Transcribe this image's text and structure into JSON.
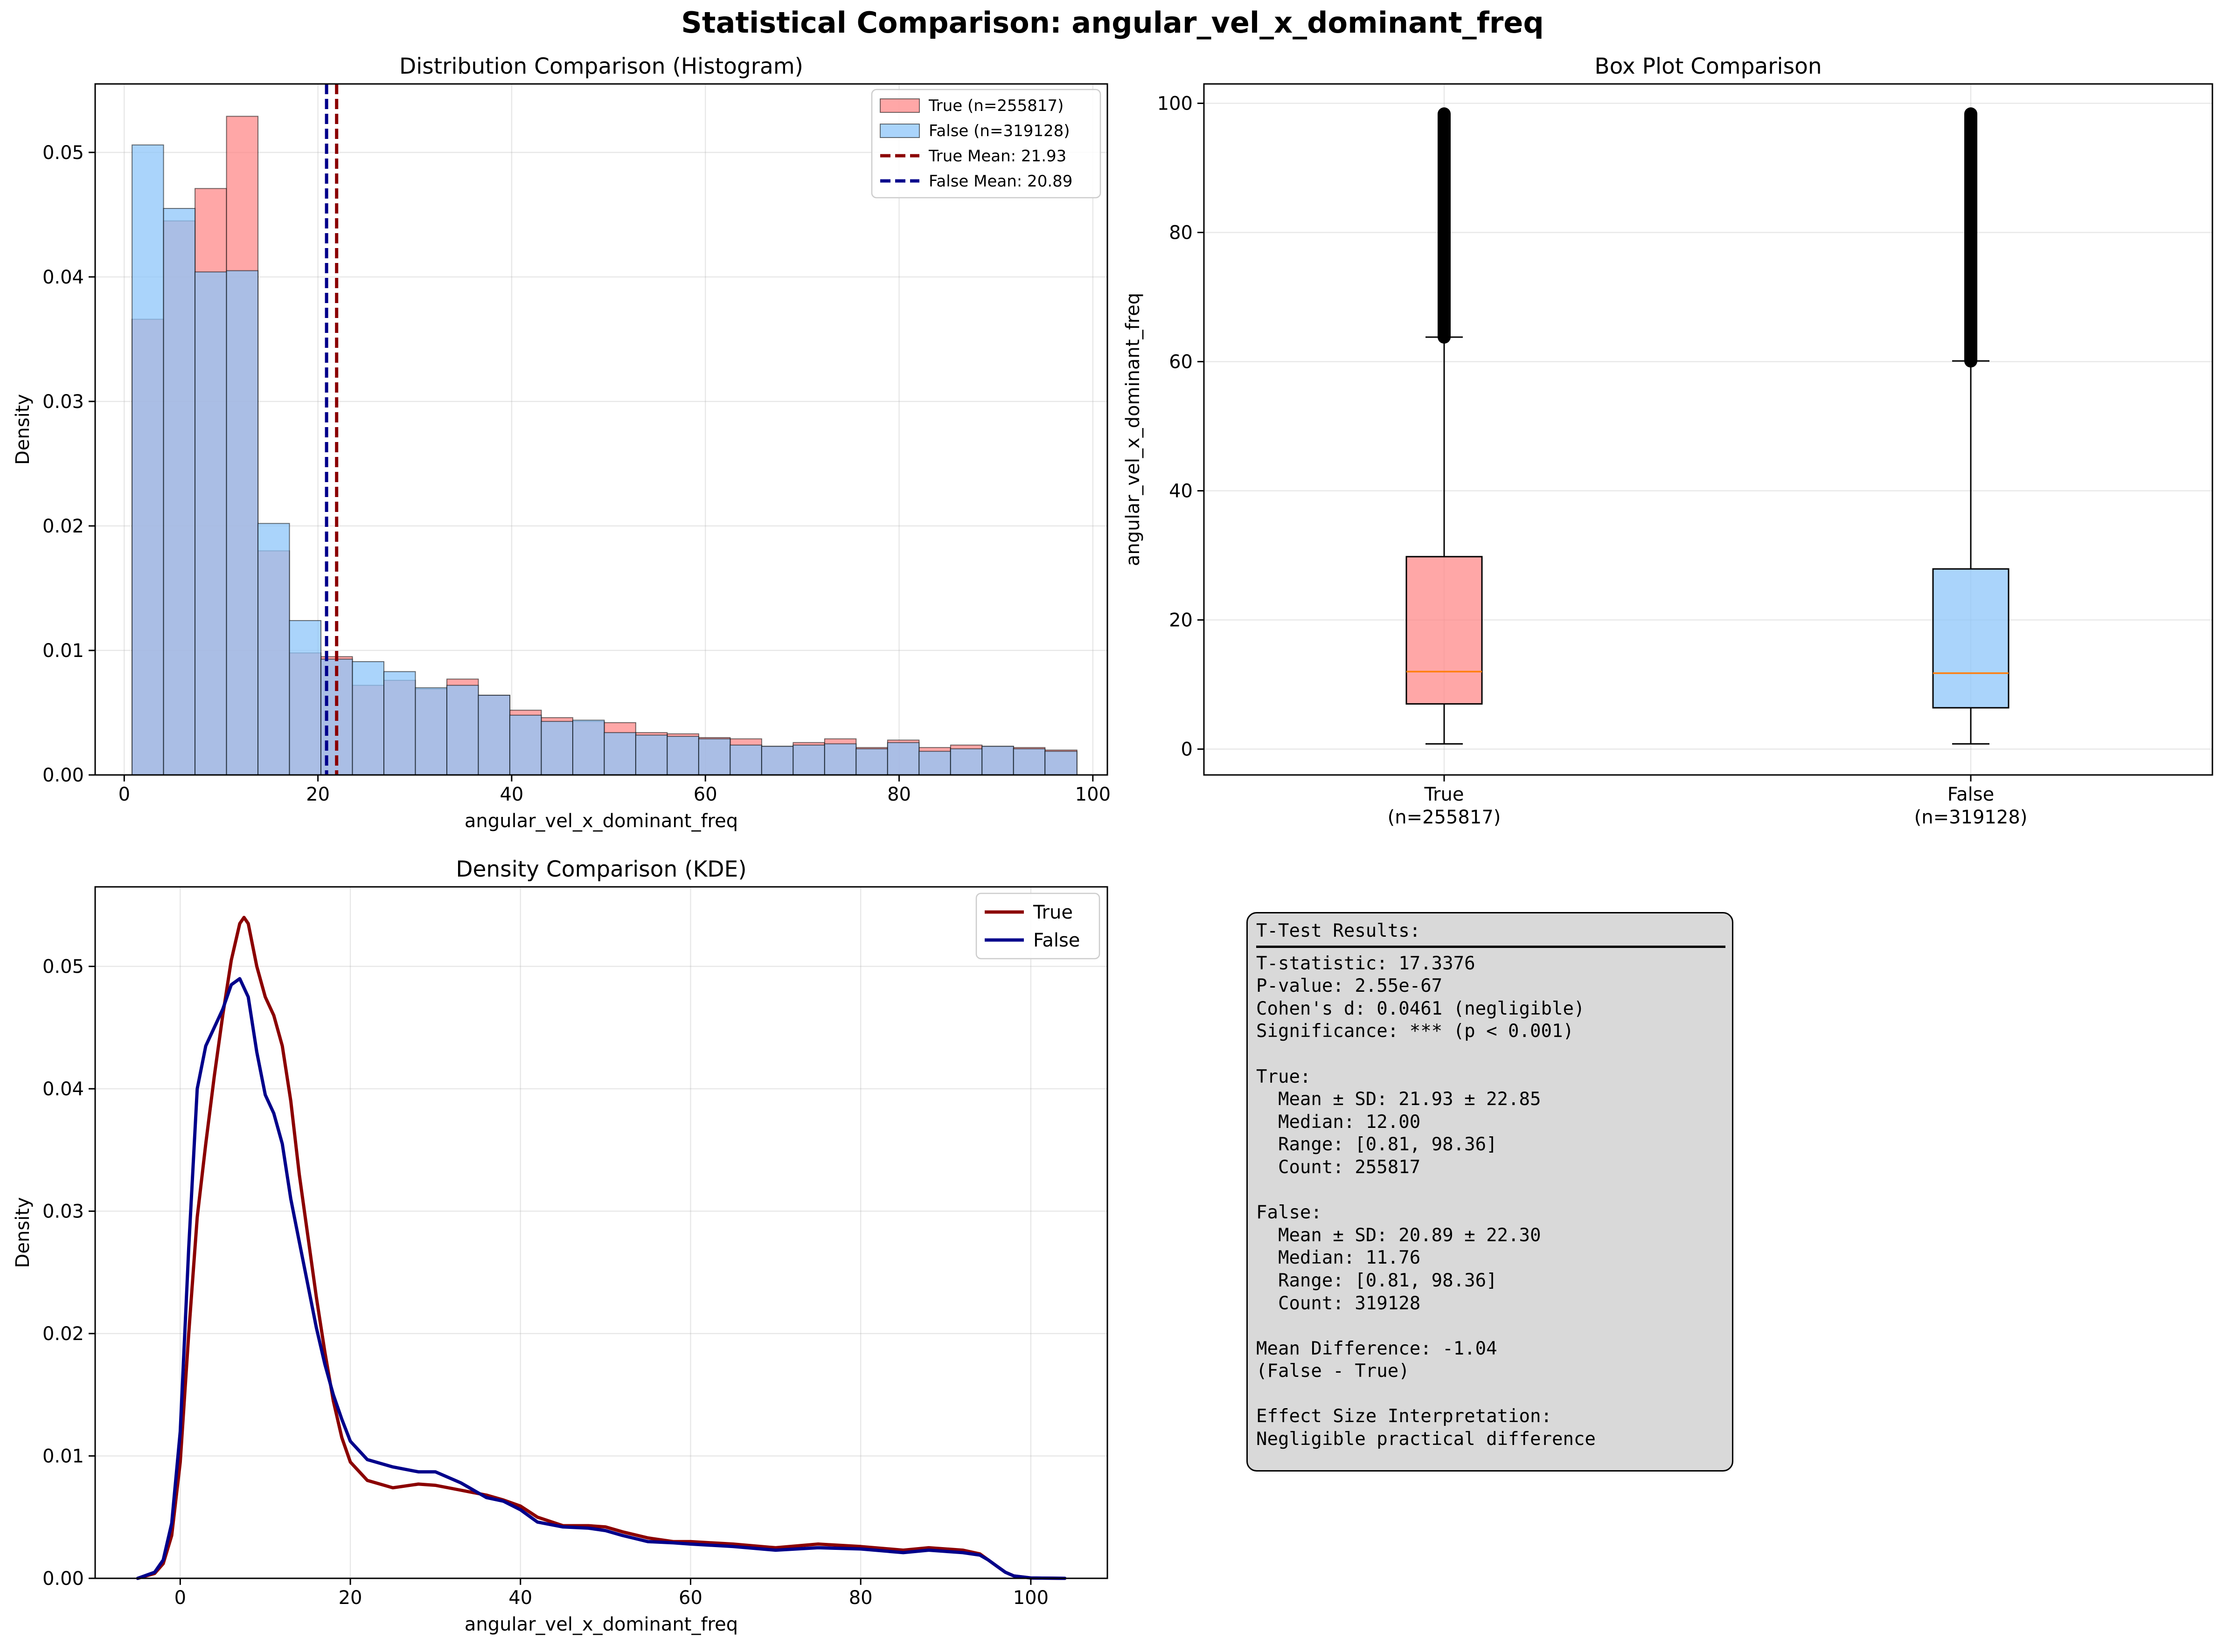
{
  "figure": {
    "title": "Statistical Comparison: angular_vel_x_dominant_freq"
  },
  "colors": {
    "true_fill": "#ff8a8a",
    "false_fill": "#8ec5f9",
    "overlap_fill": "#a7b7e4",
    "true_line": "#8b0000",
    "false_line": "#00008b",
    "median": "#ff7f0e"
  },
  "chart_data": [
    {
      "type": "bar",
      "title": "Distribution Comparison (Histogram)",
      "xlabel": "angular_vel_x_dominant_freq",
      "ylabel": "Density",
      "xlim": [
        -3,
        101.5
      ],
      "ylim": [
        0,
        0.0555
      ],
      "xticks": [
        0,
        20,
        40,
        60,
        80,
        100
      ],
      "yticks": [
        0.0,
        0.01,
        0.02,
        0.03,
        0.04,
        0.05
      ],
      "ytick_labels": [
        "0.00",
        "0.01",
        "0.02",
        "0.03",
        "0.04",
        "0.05"
      ],
      "grid": true,
      "legend_position": "top-right",
      "bin_edges": [
        0.81,
        4.06,
        7.31,
        10.56,
        13.81,
        17.06,
        20.31,
        23.56,
        26.81,
        30.06,
        33.31,
        36.56,
        39.81,
        43.06,
        46.31,
        49.56,
        52.81,
        56.06,
        59.31,
        62.56,
        65.81,
        69.06,
        72.31,
        75.56,
        78.81,
        82.06,
        85.31,
        88.56,
        91.81,
        95.06,
        98.36
      ],
      "series": [
        {
          "name": "True (n=255817)",
          "values": [
            0.0366,
            0.0445,
            0.0471,
            0.0529,
            0.018,
            0.0098,
            0.0095,
            0.0072,
            0.0076,
            0.0069,
            0.0077,
            0.0064,
            0.0052,
            0.0046,
            0.0043,
            0.0042,
            0.0034,
            0.0033,
            0.003,
            0.0029,
            0.0023,
            0.0026,
            0.0029,
            0.0022,
            0.0028,
            0.0022,
            0.0024,
            0.0023,
            0.0022,
            0.002
          ]
        },
        {
          "name": "False (n=319128)",
          "values": [
            0.0506,
            0.0455,
            0.0404,
            0.0405,
            0.0202,
            0.0124,
            0.0093,
            0.0091,
            0.0083,
            0.007,
            0.0072,
            0.0064,
            0.0048,
            0.0043,
            0.0044,
            0.0034,
            0.0032,
            0.0031,
            0.0029,
            0.0024,
            0.0023,
            0.0024,
            0.0025,
            0.0021,
            0.0026,
            0.0019,
            0.0021,
            0.0023,
            0.0021,
            0.0019
          ]
        }
      ],
      "mean_lines": [
        {
          "name": "True Mean: 21.93",
          "value": 21.93
        },
        {
          "name": "False Mean: 20.89",
          "value": 20.89
        }
      ]
    },
    {
      "type": "box",
      "title": "Box Plot Comparison",
      "ylabel": "angular_vel_x_dominant_freq",
      "ylim": [
        -4,
        103
      ],
      "yticks": [
        0,
        20,
        40,
        60,
        80,
        100
      ],
      "grid": true,
      "categories": [
        "True\n(n=255817)",
        "False\n(n=319128)"
      ],
      "boxes": [
        {
          "whisker_low": 0.81,
          "q1": 7.0,
          "median": 12.0,
          "q3": 29.8,
          "whisker_high": 63.8,
          "outlier_min": 63.8,
          "outlier_max": 98.36
        },
        {
          "whisker_low": 0.81,
          "q1": 6.4,
          "median": 11.76,
          "q3": 27.9,
          "whisker_high": 60.1,
          "outlier_min": 60.1,
          "outlier_max": 98.36
        }
      ]
    },
    {
      "type": "line",
      "title": "Density Comparison (KDE)",
      "xlabel": "angular_vel_x_dominant_freq",
      "ylabel": "Density",
      "xlim": [
        -10,
        109
      ],
      "ylim": [
        0,
        0.0565
      ],
      "xticks": [
        0,
        20,
        40,
        60,
        80,
        100
      ],
      "yticks": [
        0.0,
        0.01,
        0.02,
        0.03,
        0.04,
        0.05
      ],
      "ytick_labels": [
        "0.00",
        "0.01",
        "0.02",
        "0.03",
        "0.04",
        "0.05"
      ],
      "grid": true,
      "legend_position": "top-right",
      "series": [
        {
          "name": "True",
          "x": [
            -5,
            -3,
            -2,
            -1,
            0,
            1,
            2,
            3,
            4,
            5,
            6,
            7,
            7.5,
            8,
            9,
            10,
            11,
            12,
            13,
            14,
            15,
            16,
            17,
            18,
            19,
            20,
            22,
            25,
            28,
            30,
            33,
            36,
            38,
            40,
            42,
            45,
            48,
            50,
            52,
            55,
            58,
            60,
            65,
            70,
            75,
            80,
            85,
            88,
            90,
            92,
            94,
            95,
            96,
            97,
            98,
            100,
            104
          ],
          "y": [
            0,
            0.0004,
            0.0012,
            0.0035,
            0.0095,
            0.02,
            0.0295,
            0.0355,
            0.041,
            0.046,
            0.0505,
            0.0535,
            0.054,
            0.0535,
            0.05,
            0.0475,
            0.046,
            0.0435,
            0.039,
            0.033,
            0.028,
            0.023,
            0.0185,
            0.0145,
            0.0115,
            0.0095,
            0.008,
            0.0074,
            0.0077,
            0.0076,
            0.0072,
            0.0068,
            0.0064,
            0.0059,
            0.005,
            0.0043,
            0.0043,
            0.0042,
            0.0038,
            0.0033,
            0.003,
            0.003,
            0.0028,
            0.0025,
            0.0028,
            0.0026,
            0.0023,
            0.0025,
            0.0024,
            0.0023,
            0.002,
            0.0015,
            0.001,
            0.0005,
            0.0002,
            3e-05,
            0
          ]
        },
        {
          "name": "False",
          "x": [
            -5,
            -3,
            -2,
            -1,
            0,
            1,
            2,
            3,
            4,
            5,
            6,
            7,
            8,
            9,
            10,
            11,
            12,
            13,
            14,
            15,
            16,
            17,
            18,
            19,
            20,
            22,
            25,
            28,
            30,
            33,
            36,
            38,
            40,
            42,
            45,
            48,
            50,
            52,
            55,
            58,
            60,
            65,
            70,
            75,
            80,
            85,
            88,
            90,
            92,
            94,
            95,
            96,
            97,
            98,
            100,
            104
          ],
          "y": [
            0,
            0.0005,
            0.0015,
            0.0045,
            0.012,
            0.027,
            0.04,
            0.0435,
            0.045,
            0.0465,
            0.0485,
            0.049,
            0.0475,
            0.043,
            0.0395,
            0.038,
            0.0355,
            0.031,
            0.0275,
            0.024,
            0.0205,
            0.0175,
            0.015,
            0.013,
            0.0112,
            0.0097,
            0.0091,
            0.0087,
            0.0087,
            0.0078,
            0.0066,
            0.0063,
            0.0056,
            0.0046,
            0.0042,
            0.0041,
            0.0039,
            0.0035,
            0.003,
            0.0029,
            0.0028,
            0.0026,
            0.0023,
            0.0025,
            0.0024,
            0.0021,
            0.0023,
            0.0022,
            0.0021,
            0.0019,
            0.0015,
            0.001,
            0.0005,
            0.0002,
            3e-05,
            0
          ]
        }
      ]
    }
  ],
  "stats": {
    "lines": [
      "T-Test Results:",
      "T-statistic: 17.3376",
      "P-value: 2.55e-67",
      "Cohen's d: 0.0461 (negligible)",
      "Significance: *** (p < 0.001)",
      "",
      "True:",
      "  Mean ± SD: 21.93 ± 22.85",
      "  Median: 12.00",
      "  Range: [0.81, 98.36]",
      "  Count: 255817",
      "",
      "False:",
      "  Mean ± SD: 20.89 ± 22.30",
      "  Median: 11.76",
      "  Range: [0.81, 98.36]",
      "  Count: 319128",
      "",
      "Mean Difference: -1.04",
      "(False - True)",
      "",
      "Effect Size Interpretation:",
      "Negligible practical difference"
    ]
  }
}
